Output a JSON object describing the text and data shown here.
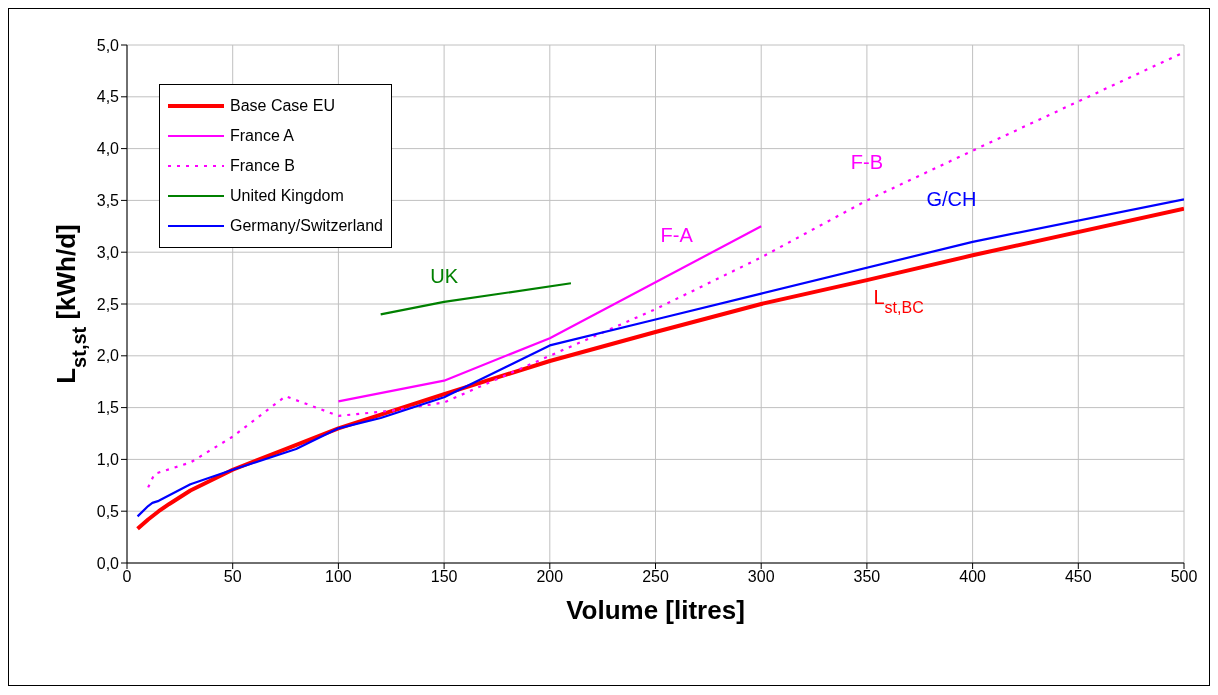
{
  "chart_data": {
    "type": "line",
    "xlabel": "Volume [litres]",
    "ylabel": "L$_{st,st}$ [kWh/d]",
    "xlim": [
      0,
      500
    ],
    "xticks": [
      0,
      50,
      100,
      150,
      200,
      250,
      300,
      350,
      400,
      450,
      500
    ],
    "ylim": [
      0,
      5
    ],
    "yticks": [
      {
        "value": 0,
        "label": "0,0"
      },
      {
        "value": 0.5,
        "label": "0,5"
      },
      {
        "value": 1,
        "label": "1,0"
      },
      {
        "value": 1.5,
        "label": "1,5"
      },
      {
        "value": 2,
        "label": "2,0"
      },
      {
        "value": 2.5,
        "label": "2,5"
      },
      {
        "value": 3,
        "label": "3,0"
      },
      {
        "value": 3.5,
        "label": "3,5"
      },
      {
        "value": 4,
        "label": "4,0"
      },
      {
        "value": 4.5,
        "label": "4,5"
      },
      {
        "value": 5,
        "label": "5,0"
      }
    ],
    "grid": true,
    "legend": "top left",
    "marker": "none",
    "series": [
      {
        "name": "Base Case EU",
        "color": "#ff0000",
        "line_style": "solid",
        "x": [
          5,
          10,
          15,
          20,
          30,
          50,
          75,
          100,
          150,
          200,
          250,
          300,
          350,
          400,
          500
        ],
        "values": [
          0.33,
          0.42,
          0.5,
          0.57,
          0.7,
          0.9,
          1.1,
          1.3,
          1.63,
          1.95,
          2.23,
          2.5,
          2.73,
          2.97,
          3.42
        ]
      },
      {
        "name": "France A",
        "color": "#ff00ff",
        "line_style": "solid",
        "x": [
          100,
          150,
          200,
          300
        ],
        "values": [
          1.56,
          1.76,
          2.17,
          3.25
        ]
      },
      {
        "name": "France B",
        "color": "#ff00ff",
        "line_style": "dotted",
        "x": [
          10,
          13,
          30,
          50,
          75,
          100,
          125,
          150,
          200,
          250,
          300,
          350,
          400,
          500
        ],
        "values": [
          0.73,
          0.86,
          0.97,
          1.22,
          1.61,
          1.42,
          1.47,
          1.55,
          2.0,
          2.45,
          2.95,
          3.5,
          3.98,
          4.93
        ]
      },
      {
        "name": "United Kingdom",
        "color": "#008000",
        "line_style": "solid",
        "x": [
          120,
          150,
          210
        ],
        "values": [
          2.4,
          2.52,
          2.7
        ]
      },
      {
        "name": "Germany/Switzerland",
        "color": "#0000ff",
        "line_style": "solid",
        "x": [
          5,
          10,
          12,
          15,
          30,
          50,
          80,
          100,
          120,
          150,
          200,
          250,
          300,
          400,
          500
        ],
        "values": [
          0.45,
          0.55,
          0.58,
          0.6,
          0.76,
          0.9,
          1.1,
          1.3,
          1.4,
          1.6,
          2.1,
          2.35,
          2.6,
          3.1,
          3.51
        ]
      }
    ],
    "annotations": [
      "L$_{st,BC}$",
      "F-A",
      "F-B",
      "UK",
      "G/CH"
    ]
  }
}
